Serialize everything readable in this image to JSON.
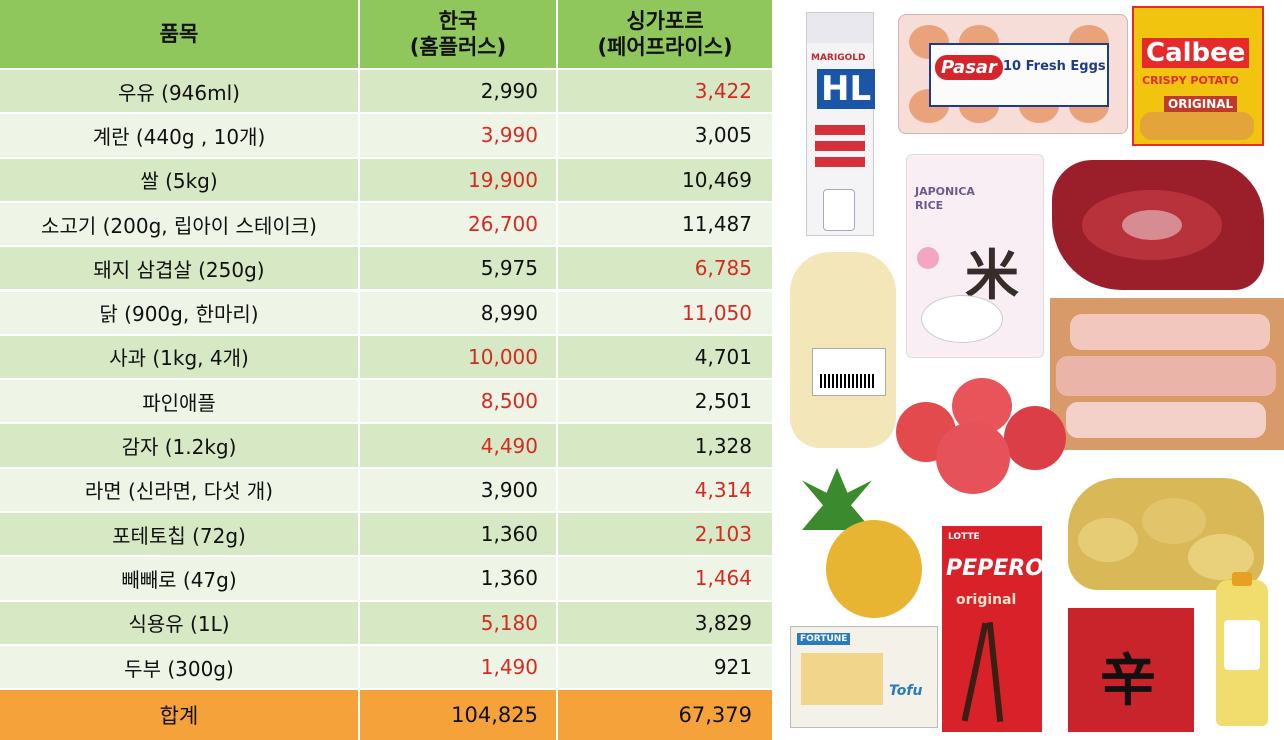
{
  "header": {
    "item": "품목",
    "korea": "한국\n(홈플러스)",
    "korea_line1": "한국",
    "korea_line2": "(홈플러스)",
    "singapore_line1": "싱가포르",
    "singapore_line2": "(페어프라이스)"
  },
  "rows": [
    {
      "item": "우유 (946ml)",
      "korea": "2,990",
      "singapore": "3,422",
      "higher": "singapore"
    },
    {
      "item": "계란 (440g , 10개)",
      "korea": "3,990",
      "singapore": "3,005",
      "higher": "korea"
    },
    {
      "item": "쌀 (5kg)",
      "korea": "19,900",
      "singapore": "10,469",
      "higher": "korea"
    },
    {
      "item": "소고기 (200g, 립아이 스테이크)",
      "korea": "26,700",
      "singapore": "11,487",
      "higher": "korea"
    },
    {
      "item": "돼지 삼겹살 (250g)",
      "korea": "5,975",
      "singapore": "6,785",
      "higher": "singapore"
    },
    {
      "item": "닭 (900g, 한마리)",
      "korea": "8,990",
      "singapore": "11,050",
      "higher": "singapore"
    },
    {
      "item": "사과 (1kg, 4개)",
      "korea": "10,000",
      "singapore": "4,701",
      "higher": "korea"
    },
    {
      "item": "파인애플",
      "korea": "8,500",
      "singapore": "2,501",
      "higher": "korea"
    },
    {
      "item": "감자 (1.2kg)",
      "korea": "4,490",
      "singapore": "1,328",
      "higher": "korea"
    },
    {
      "item": "라면 (신라면, 다섯 개)",
      "korea": "3,900",
      "singapore": "4,314",
      "higher": "singapore"
    },
    {
      "item": "포테토칩 (72g)",
      "korea": "1,360",
      "singapore": "2,103",
      "higher": "singapore"
    },
    {
      "item": "빼빼로 (47g)",
      "korea": "1,360",
      "singapore": "1,464",
      "higher": "singapore"
    },
    {
      "item": "식용유 (1L)",
      "korea": "5,180",
      "singapore": "3,829",
      "higher": "korea"
    },
    {
      "item": "두부 (300g)",
      "korea": "1,490",
      "singapore": "921",
      "higher": "korea"
    }
  ],
  "total": {
    "item": "합계",
    "korea": "104,825",
    "singapore": "67,379"
  },
  "colors": {
    "header": "#8fc75c",
    "row_dark": "#d6e8c4",
    "row_light": "#eef5e6",
    "total": "#f6a23a",
    "higher_price": "#d52a22"
  },
  "product_labels": {
    "milk_brand": "HL",
    "milk_maker": "MARIGOLD",
    "eggs_brand": "Pasar",
    "eggs_text": "10 Fresh Eggs",
    "chips_brand": "Calbee",
    "chips_line1": "CRISPY POTATO",
    "chips_line2": "ORIGINAL",
    "rice_text": "JAPONICA RICE",
    "rice_glyph": "米",
    "pepero_maker": "LOTTE",
    "pepero_brand": "PEPERO",
    "pepero_sub": "original",
    "ramen_glyph": "辛",
    "tofu_brand": "FORTUNE",
    "tofu_text": "Tofu"
  }
}
